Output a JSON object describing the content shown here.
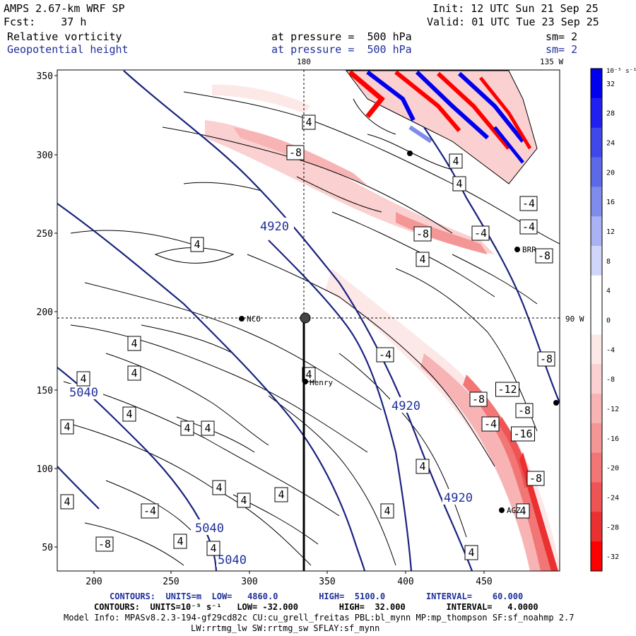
{
  "header": {
    "model": "AMPS 2.67-km WRF SP",
    "init": "Init: 12 UTC Sun 21 Sep 25",
    "fcst": "Fcst:    37 h",
    "valid": "Valid: 01 UTC Tue 23 Sep 25",
    "field1_name": "Relative vorticity",
    "field1_level": "at pressure =  500 hPa",
    "field1_sm": "sm= 2",
    "field2_name": "Geopotential height",
    "field2_level": "at pressure =  500 hPa",
    "field2_sm": "sm= 2"
  },
  "map": {
    "lon_label_180": "180",
    "lon_label_135w": "135 W",
    "lon_label_90w": "90 W",
    "x_ticks": [
      "200",
      "250",
      "300",
      "350",
      "400",
      "450"
    ],
    "y_ticks": [
      "350",
      "300",
      "250",
      "200",
      "150",
      "100",
      "50"
    ],
    "stations": [
      {
        "label": "NCO"
      },
      {
        "label": "Henry"
      },
      {
        "label": "BRR"
      },
      {
        "label": "AGZ"
      }
    ],
    "height_contour_labels": [
      "4920",
      "4920",
      "4920",
      "5040",
      "5040",
      "5040"
    ],
    "vorticity_labels": [
      "4",
      "-8",
      "4",
      "4",
      "-4",
      "-4",
      "-8",
      "-4",
      "4",
      "-8",
      "4",
      "-4",
      "-8",
      "4",
      "4",
      "4",
      "4",
      "-12",
      "-8",
      "4",
      "4",
      "4",
      "4",
      "-8",
      "-4",
      "-16",
      "4",
      "4",
      "-8",
      "4",
      "4",
      "4",
      "-4",
      "4",
      "4",
      "4",
      "4",
      "-8",
      "4"
    ]
  },
  "colorbar": {
    "unit": "10⁻⁵ s⁻¹",
    "labels": [
      "32",
      "28",
      "24",
      "20",
      "16",
      "12",
      "8",
      "4",
      "0",
      "-4",
      "-8",
      "-12",
      "-16",
      "-20",
      "-24",
      "-28",
      "-32"
    ],
    "colors": [
      "#0000ee",
      "#2020f0",
      "#3f48e8",
      "#5d6ae8",
      "#7f8cec",
      "#a8b2f4",
      "#d0d6fa",
      "#ffffff",
      "#ffffff",
      "#fde8e8",
      "#fbd0d0",
      "#f8b4b4",
      "#f59696",
      "#f27676",
      "#ee5454",
      "#ea3030",
      "#ff0000"
    ]
  },
  "footer": {
    "line1_prefix": "CONTOURS:  UNITS=m  LOW=   4860.0        HIGH=  5100.0        INTERVAL=    60.000",
    "line2": "CONTOURS:  UNITS=10⁻⁵ s⁻¹   LOW= -32.000        HIGH=  32.000        INTERVAL=   4.0000",
    "line3": "Model Info: MPASv8.2.3-194-gf29cd82c CU:cu_grell_freitas PBL:bl_mynn MP:mp_thompson SF:sf_noahmp 2.7",
    "line4": "LW:rrtmg_lw SW:rrtmg_sw SFLAY:sf_mynn"
  }
}
